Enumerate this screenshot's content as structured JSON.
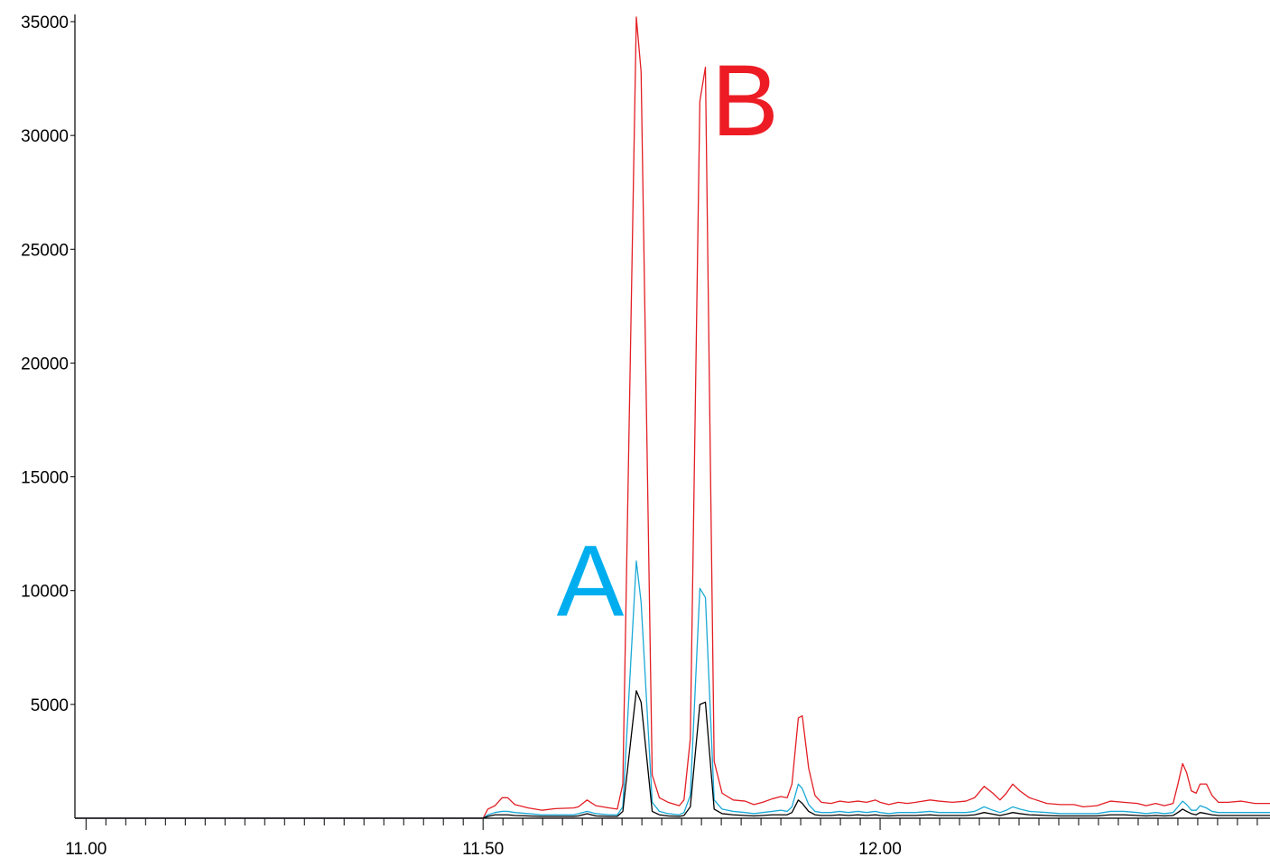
{
  "chart_data": {
    "type": "line",
    "x": [
      10.986,
      11.5,
      11.506,
      11.515,
      11.524,
      11.531,
      11.54,
      11.557,
      11.574,
      11.591,
      11.614,
      11.62,
      11.631,
      11.642,
      11.659,
      11.669,
      11.676,
      11.693,
      11.699,
      11.713,
      11.722,
      11.733,
      11.747,
      11.753,
      11.761,
      11.773,
      11.78,
      11.791,
      11.801,
      11.815,
      11.83,
      11.841,
      11.852,
      11.864,
      11.875,
      11.883,
      11.889,
      11.897,
      11.902,
      11.91,
      11.918,
      11.926,
      11.938,
      11.949,
      11.96,
      11.972,
      11.983,
      11.994,
      12.0,
      12.011,
      12.023,
      12.034,
      12.045,
      12.063,
      12.074,
      12.091,
      12.108,
      12.119,
      12.131,
      12.142,
      12.151,
      12.159,
      12.167,
      12.176,
      12.188,
      12.21,
      12.227,
      12.244,
      12.256,
      12.273,
      12.29,
      12.307,
      12.324,
      12.335,
      12.347,
      12.358,
      12.369,
      12.375,
      12.381,
      12.386,
      12.392,
      12.398,
      12.403,
      12.411,
      12.418,
      12.426,
      12.438,
      12.455,
      12.472,
      12.483,
      12.491
    ],
    "series": [
      {
        "color": "#e31e24",
        "values": [
          0,
          0,
          400,
          550,
          900,
          900,
          600,
          450,
          350,
          420,
          450,
          500,
          800,
          550,
          450,
          400,
          1500,
          35200,
          32800,
          1900,
          900,
          700,
          550,
          800,
          3500,
          31500,
          33000,
          2500,
          1100,
          800,
          750,
          600,
          700,
          850,
          950,
          900,
          1500,
          4400,
          4500,
          2200,
          1000,
          700,
          650,
          750,
          700,
          750,
          700,
          800,
          700,
          600,
          700,
          650,
          700,
          800,
          750,
          700,
          750,
          900,
          1400,
          1100,
          800,
          1100,
          1500,
          1200,
          900,
          650,
          600,
          600,
          500,
          550,
          750,
          700,
          650,
          550,
          650,
          550,
          650,
          1500,
          2400,
          2000,
          1200,
          1100,
          1500,
          1500,
          1000,
          700,
          700,
          750,
          650,
          650,
          650
        ]
      },
      {
        "color": "#1aa9d6",
        "values": [
          0,
          0,
          150,
          250,
          300,
          300,
          250,
          200,
          150,
          150,
          150,
          200,
          300,
          200,
          150,
          150,
          500,
          11300,
          9500,
          700,
          300,
          200,
          150,
          250,
          1000,
          10100,
          9700,
          800,
          400,
          300,
          250,
          200,
          250,
          300,
          350,
          300,
          500,
          1500,
          1300,
          600,
          300,
          250,
          250,
          300,
          250,
          300,
          250,
          300,
          250,
          200,
          250,
          250,
          250,
          300,
          250,
          250,
          250,
          300,
          500,
          350,
          250,
          350,
          500,
          400,
          300,
          250,
          200,
          200,
          200,
          200,
          300,
          300,
          250,
          200,
          250,
          200,
          250,
          500,
          750,
          600,
          350,
          350,
          550,
          450,
          300,
          250,
          250,
          250,
          250,
          250,
          250
        ]
      },
      {
        "color": "#000000",
        "values": [
          0,
          0,
          80,
          150,
          150,
          150,
          120,
          100,
          80,
          80,
          80,
          100,
          200,
          100,
          80,
          80,
          300,
          5600,
          5100,
          300,
          150,
          100,
          80,
          120,
          500,
          5000,
          5100,
          400,
          200,
          150,
          120,
          100,
          120,
          150,
          150,
          150,
          250,
          800,
          650,
          300,
          150,
          120,
          120,
          150,
          120,
          150,
          120,
          150,
          120,
          100,
          120,
          120,
          120,
          150,
          120,
          120,
          120,
          150,
          250,
          180,
          120,
          180,
          250,
          200,
          150,
          120,
          100,
          100,
          100,
          100,
          150,
          150,
          120,
          100,
          120,
          100,
          120,
          250,
          400,
          300,
          200,
          150,
          250,
          200,
          150,
          120,
          120,
          120,
          120,
          120,
          120
        ]
      }
    ],
    "xlim": [
      10.986,
      12.491
    ],
    "ylim": [
      0,
      35000
    ],
    "xticks": [
      {
        "value": 11,
        "label": "11.00"
      },
      {
        "value": 11.5,
        "label": "11.50"
      },
      {
        "value": 12,
        "label": "12.00"
      }
    ],
    "xminor_ticks": [
      11.025,
      11.05,
      11.075,
      11.1,
      11.125,
      11.15,
      11.175,
      11.2,
      11.225,
      11.25,
      11.275,
      11.3,
      11.325,
      11.35,
      11.375,
      11.4,
      11.425,
      11.45,
      11.475,
      11.525,
      11.55,
      11.575,
      11.6,
      11.625,
      11.65,
      11.675,
      11.7,
      11.725,
      11.75,
      11.775,
      11.8,
      11.825,
      11.85,
      11.875,
      11.9,
      11.925,
      11.95,
      11.975,
      12.025,
      12.05,
      12.075,
      12.1,
      12.125,
      12.15,
      12.175,
      12.2,
      12.225,
      12.25,
      12.275,
      12.3,
      12.325,
      12.35,
      12.375,
      12.4,
      12.425,
      12.45,
      12.475
    ],
    "yticks": [
      5000,
      10000,
      15000,
      20000,
      25000,
      30000,
      35000
    ],
    "grid": false,
    "annotations": [
      {
        "text": "A",
        "color": "#00aeef",
        "x": 11.635,
        "y": 8900
      },
      {
        "text": "B",
        "color": "#ed1c24",
        "x": 11.83,
        "y": 30000
      }
    ]
  }
}
